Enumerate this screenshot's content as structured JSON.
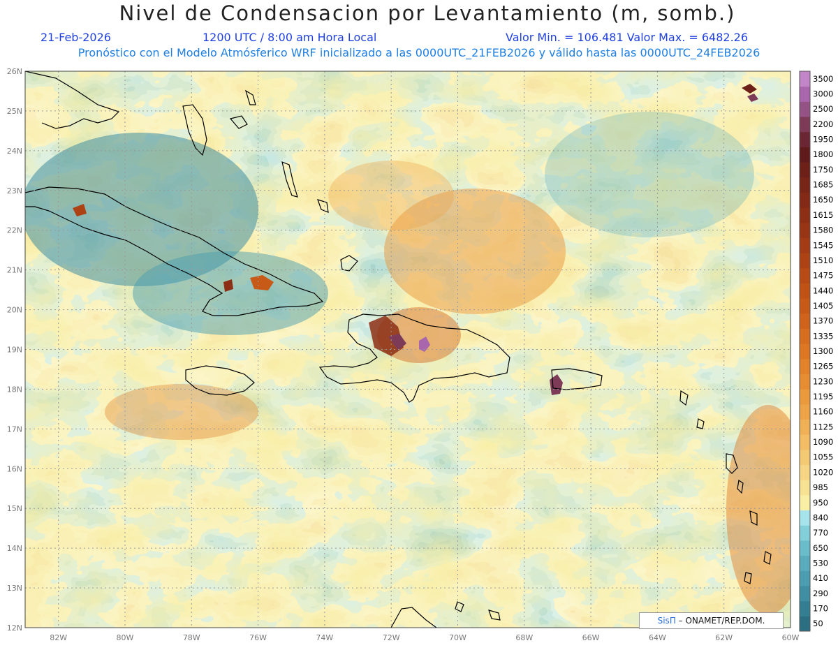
{
  "header": {
    "title": "Nivel de Condensacion por Levantamiento (m, somb.)",
    "date": "21-Feb-2026",
    "time": "1200 UTC / 8:00 am Hora Local",
    "minmax": "Valor Min. = 106.481   Valor Max. = 6482.26",
    "model_info": "Pronóstico con el Modelo Atmósferico WRF inicializado a las 0000UTC_21FEB2026 y válido hasta las  0000UTC_24FEB2026"
  },
  "map": {
    "lon_range": [
      -83.0,
      -60.0
    ],
    "lat_range": [
      12.0,
      26.0
    ],
    "lon_ticks": [
      "82W",
      "80W",
      "78W",
      "76W",
      "74W",
      "72W",
      "70W",
      "68W",
      "66W",
      "64W",
      "62W",
      "60W"
    ],
    "lat_ticks": [
      "12N",
      "13N",
      "14N",
      "15N",
      "16N",
      "17N",
      "18N",
      "19N",
      "20N",
      "21N",
      "22N",
      "23N",
      "24N",
      "25N",
      "26N"
    ],
    "grid": "dotted"
  },
  "legend": {
    "levels": [
      "50",
      "170",
      "290",
      "410",
      "530",
      "650",
      "770",
      "840",
      "950",
      "985",
      "1020",
      "1055",
      "1090",
      "1125",
      "1160",
      "1195",
      "1230",
      "1265",
      "1300",
      "1335",
      "1370",
      "1405",
      "1440",
      "1475",
      "1510",
      "1545",
      "1580",
      "1615",
      "1650",
      "1685",
      "1750",
      "1800",
      "1950",
      "2200",
      "2500",
      "3000",
      "3500"
    ],
    "colors": [
      "#2c6f83",
      "#347e92",
      "#3f8ea1",
      "#4c9daf",
      "#5aacbd",
      "#6bbcca",
      "#82cfda",
      "#a6e3ea",
      "#f8eea4",
      "#f7e294",
      "#f6d684",
      "#f4c973",
      "#f2bd64",
      "#f0b156",
      "#eda449",
      "#ea993d",
      "#e68d33",
      "#e2822b",
      "#dd7724",
      "#d76d1f",
      "#d0631b",
      "#c85a18",
      "#c05216",
      "#b74a15",
      "#ad4314",
      "#a33c14",
      "#983514",
      "#8d2f14",
      "#822a15",
      "#772516",
      "#6c2018",
      "#5f1b1c",
      "#6b2634",
      "#7d3b58",
      "#955285",
      "#a966ad",
      "#c286c8"
    ]
  },
  "credit": {
    "sis": "SisΠ",
    "org": "– ONAMET/REP.DOM."
  }
}
